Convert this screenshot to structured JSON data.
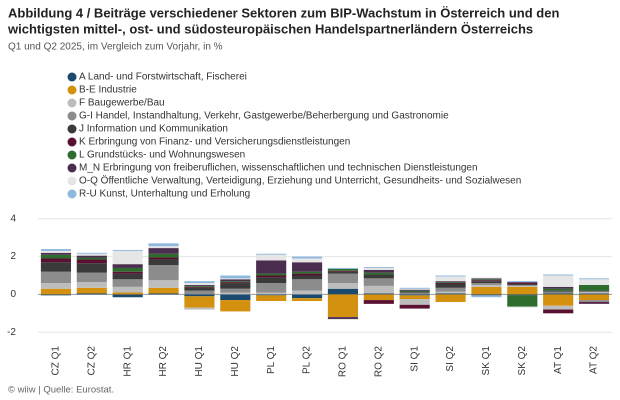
{
  "chart_data": {
    "type": "stacked-bar",
    "title": [
      "Abbildung 4 / Beiträge verschiedener Sektoren zum BIP-Wachstum in Österreich und den",
      "wichtigsten mittel-, ost- und südosteuropäischen Handelspartnerländern Österreichs"
    ],
    "subtitle": "Q1 und Q2 2025, im Vergleich zum Vorjahr, in %",
    "source": "© wiiw | Quelle: Eurostat.",
    "categories": [
      "CZ Q1",
      "CZ Q2",
      "HR Q1",
      "HR Q2",
      "HU Q1",
      "HU Q2",
      "PL Q1",
      "PL Q2",
      "RO Q1",
      "RO Q2",
      "SI Q1",
      "SI Q2",
      "SK Q1",
      "SK Q2",
      "AT Q1",
      "AT Q2"
    ],
    "series": [
      {
        "name": "A Land- und Forstwirtschaft, Fischerei",
        "color": "#1a4a6e",
        "values": [
          -0.05,
          0.05,
          -0.15,
          0.05,
          -0.1,
          -0.3,
          -0.05,
          -0.2,
          0.3,
          0.05,
          -0.05,
          0.05,
          -0.05,
          -0.05,
          0.05,
          0.05
        ]
      },
      {
        "name": "B-E Industrie",
        "color": "#d4900f",
        "values": [
          0.3,
          0.3,
          0.1,
          0.3,
          -0.6,
          -0.6,
          -0.3,
          -0.15,
          -1.2,
          -0.3,
          -0.2,
          -0.4,
          0.4,
          0.4,
          -0.6,
          -0.3
        ]
      },
      {
        "name": "F Baugewerbe/Bau",
        "color": "#bdbdbd",
        "values": [
          0.3,
          0.3,
          0.3,
          0.4,
          -0.1,
          0.1,
          0.1,
          0.2,
          0.3,
          0.4,
          -0.3,
          0.1,
          0.1,
          0.05,
          -0.2,
          0.1
        ]
      },
      {
        "name": "G-I Handel, Instandhaltung, Verkehr, Gastgewerbe/Beherbergung und Gastronomie",
        "color": "#8c8c8c",
        "values": [
          0.6,
          0.5,
          0.4,
          0.8,
          0.2,
          0.2,
          0.5,
          0.6,
          0.5,
          0.4,
          0.1,
          0.2,
          0.1,
          0.05,
          0.1,
          -0.1
        ]
      },
      {
        "name": "J Information und Kommunikation",
        "color": "#3a3a3a",
        "values": [
          0.5,
          0.5,
          0.3,
          0.3,
          0.15,
          0.3,
          0.3,
          0.2,
          0.1,
          0.2,
          0.05,
          0.2,
          0.1,
          0.05,
          0.05,
          0.05
        ]
      },
      {
        "name": "K Erbringung von Finanz- und Versicherungsdienstleistungen",
        "color": "#5a1030",
        "values": [
          0.2,
          0.2,
          0.1,
          0.1,
          0.05,
          0.05,
          0.1,
          0.1,
          0.05,
          -0.2,
          -0.2,
          0.05,
          0.05,
          0.05,
          -0.2,
          -0.05
        ]
      },
      {
        "name": "L Grundstücks- und Wohnungswesen",
        "color": "#2e6b2e",
        "values": [
          0.2,
          0.1,
          0.2,
          0.2,
          0.05,
          0.05,
          0.1,
          0.1,
          0.1,
          0.1,
          0.05,
          0.05,
          0.05,
          -0.6,
          0.1,
          0.3
        ]
      },
      {
        "name": "M_N Erbringung von freiberuflichen, wissenschaftlichen und technischen Dienstleistungen",
        "color": "#4a2d4f",
        "values": [
          0.1,
          0.1,
          0.2,
          0.3,
          0.05,
          0.1,
          0.7,
          0.5,
          -0.1,
          0.15,
          0.05,
          0.05,
          0.05,
          0.05,
          0.1,
          -0.05
        ]
      },
      {
        "name": "O-Q Öffentliche Verwaltung, Verteidigung, Erziehung und Unterricht, Gesundheits- und Sozialwesen",
        "color": "#e6e6e6",
        "values": [
          0.1,
          0.1,
          0.7,
          0.1,
          0.1,
          0.05,
          0.3,
          0.2,
          -0.05,
          0.1,
          0.05,
          0.25,
          0.05,
          -0.05,
          0.6,
          0.3
        ]
      },
      {
        "name": "R-U Kunst, Unterhaltung und Erholung",
        "color": "#8fb8de",
        "values": [
          0.1,
          0.05,
          0.05,
          0.15,
          0.1,
          0.15,
          0.05,
          0.1,
          0.05,
          0.05,
          0.05,
          0.05,
          -0.1,
          0.05,
          0.05,
          0.05
        ]
      }
    ],
    "ylim": [
      -2.2,
      4.2
    ],
    "yticks": [
      -2,
      0,
      2,
      4
    ],
    "grid": true
  }
}
